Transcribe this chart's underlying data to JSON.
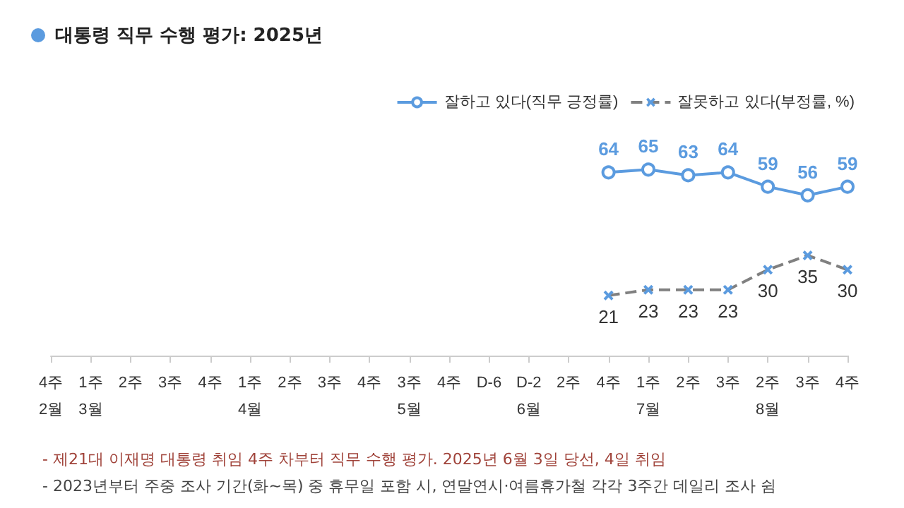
{
  "chart_data": {
    "type": "line",
    "title": "대통령 직무 수행 평가: 2025년",
    "categories": [
      "4주\n2월",
      "1주\n3월",
      "2주",
      "3주",
      "4주",
      "1주\n4월",
      "2주",
      "3주",
      "4주",
      "3주\n5월",
      "4주",
      "D-6",
      "D-2\n6월",
      "2주",
      "4주",
      "1주\n7월",
      "2주",
      "3주",
      "2주\n8월",
      "3주",
      "4주"
    ],
    "series": [
      {
        "name": "잘하고 있다(직무 긍정률)",
        "color": "#5b9bdf",
        "marker": "circle",
        "line_style": "solid",
        "values": [
          null,
          null,
          null,
          null,
          null,
          null,
          null,
          null,
          null,
          null,
          null,
          null,
          null,
          null,
          64,
          65,
          63,
          64,
          59,
          56,
          59
        ]
      },
      {
        "name": "잘못하고 있다(부정률, %)",
        "color": "#808080",
        "marker": "cross",
        "line_style": "dashed",
        "values": [
          null,
          null,
          null,
          null,
          null,
          null,
          null,
          null,
          null,
          null,
          null,
          null,
          null,
          null,
          21,
          23,
          23,
          23,
          30,
          35,
          30
        ]
      }
    ],
    "tick_labels": "x",
    "data_labels": true,
    "legend": "top right",
    "grid": false,
    "annotations": [
      "- 제21대 이재명 대통령 취임 4주 차부터 직무 수행 평가. 2025년 6월 3일 당선, 4일 취임",
      "- 2023년부터 주중 조사 기간(화~목) 중 휴무일 포함 시, 연말연시·여름휴가철 각각 3주간 데일리 조사 쉼"
    ]
  }
}
